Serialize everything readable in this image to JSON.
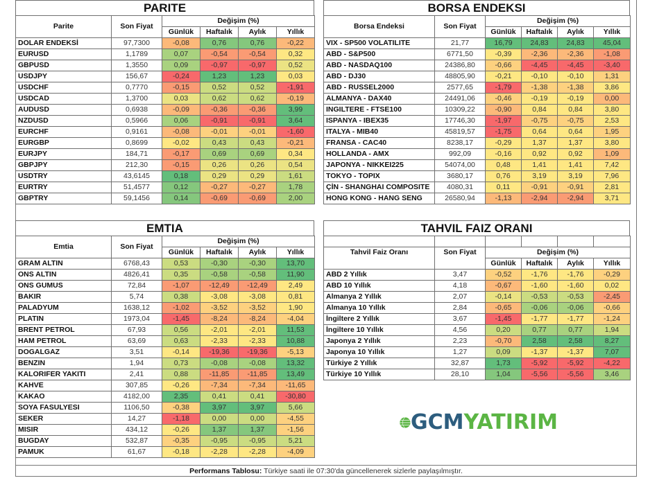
{
  "colors": {
    "A": "#63be7b",
    "B": "#85c77d",
    "C": "#a9d27f",
    "D": "#cbdc81",
    "E": "#ebe383",
    "F": "#fee783",
    "G": "#fdd17f",
    "H": "#fcb97a",
    "I": "#fa9b74",
    "J": "#f8696b"
  },
  "headers": {
    "son_fiyat": "Son Fiyat",
    "degisim": "Değişim (%)",
    "gunluk": "Günlük",
    "haftalik": "Haftalık",
    "aylik": "Aylık",
    "yillik": "Yıllık"
  },
  "parite": {
    "title": "PARITE",
    "col": "Parite",
    "rows": [
      {
        "name": "DOLAR ENDEKSİ",
        "price": "97,7300",
        "c": [
          "-0,08",
          "0,76",
          "0,76",
          "-0,22"
        ],
        "k": [
          "H",
          "B",
          "B",
          "H"
        ]
      },
      {
        "name": "EURUSD",
        "price": "1,1789",
        "c": [
          "0,07",
          "-0,54",
          "-0,54",
          "0,32"
        ],
        "k": [
          "C",
          "I",
          "I",
          "F"
        ]
      },
      {
        "name": "GBPUSD",
        "price": "1,3550",
        "c": [
          "0,09",
          "-0,97",
          "-0,97",
          "0,52"
        ],
        "k": [
          "C",
          "J",
          "J",
          "E"
        ]
      },
      {
        "name": "USDJPY",
        "price": "156,67",
        "c": [
          "-0,24",
          "1,23",
          "1,23",
          "0,03"
        ],
        "k": [
          "J",
          "A",
          "A",
          "F"
        ]
      },
      {
        "name": "USDCHF",
        "price": "0,7770",
        "c": [
          "-0,15",
          "0,52",
          "0,52",
          "-1,91"
        ],
        "k": [
          "I",
          "D",
          "D",
          "J"
        ]
      },
      {
        "name": "USDCAD",
        "price": "1,3700",
        "c": [
          "0,03",
          "0,62",
          "0,62",
          "-0,19"
        ],
        "k": [
          "E",
          "D",
          "D",
          "H"
        ]
      },
      {
        "name": "AUDUSD",
        "price": "0,6938",
        "c": [
          "-0,09",
          "-0,36",
          "-0,36",
          "3,99"
        ],
        "k": [
          "H",
          "I",
          "I",
          "A"
        ]
      },
      {
        "name": "NZDUSD",
        "price": "0,5966",
        "c": [
          "0,06",
          "-0,91",
          "-0,91",
          "3,64"
        ],
        "k": [
          "C",
          "J",
          "J",
          "A"
        ]
      },
      {
        "name": "EURCHF",
        "price": "0,9161",
        "c": [
          "-0,08",
          "-0,01",
          "-0,01",
          "-1,60"
        ],
        "k": [
          "H",
          "G",
          "G",
          "J"
        ]
      },
      {
        "name": "EURGBP",
        "price": "0,8699",
        "c": [
          "-0,02",
          "0,43",
          "0,43",
          "-0,21"
        ],
        "k": [
          "F",
          "D",
          "D",
          "H"
        ]
      },
      {
        "name": "EURJPY",
        "price": "184,71",
        "c": [
          "-0,17",
          "0,69",
          "0,69",
          "0,34"
        ],
        "k": [
          "I",
          "C",
          "C",
          "F"
        ]
      },
      {
        "name": "GBPJPY",
        "price": "212,30",
        "c": [
          "-0,15",
          "0,26",
          "0,26",
          "0,54"
        ],
        "k": [
          "I",
          "E",
          "E",
          "E"
        ]
      },
      {
        "name": "USDTRY",
        "price": "43,6145",
        "c": [
          "0,18",
          "0,29",
          "0,29",
          "1,61"
        ],
        "k": [
          "A",
          "E",
          "E",
          "D"
        ]
      },
      {
        "name": "EURTRY",
        "price": "51,4577",
        "c": [
          "0,12",
          "-0,27",
          "-0,27",
          "1,78"
        ],
        "k": [
          "B",
          "H",
          "H",
          "C"
        ]
      },
      {
        "name": "GBPTRY",
        "price": "59,1456",
        "c": [
          "0,14",
          "-0,69",
          "-0,69",
          "2,00"
        ],
        "k": [
          "B",
          "I",
          "I",
          "C"
        ]
      }
    ]
  },
  "borsa": {
    "title": "BORSA ENDEKSI",
    "col": "Borsa Endeksi",
    "rows": [
      {
        "name": "VIX  - SP500 VOLATILITE",
        "price": "21,77",
        "c": [
          "16,79",
          "24,83",
          "24,83",
          "45,04"
        ],
        "k": [
          "A",
          "A",
          "A",
          "A"
        ]
      },
      {
        "name": "ABD - S&P500",
        "price": "6771,50",
        "c": [
          "-0,39",
          "-2,36",
          "-2,36",
          "-1,08"
        ],
        "k": [
          "F",
          "H",
          "H",
          "I"
        ]
      },
      {
        "name": "ABD - NASDAQ100",
        "price": "24386,80",
        "c": [
          "-0,66",
          "-4,45",
          "-4,45",
          "-3,40"
        ],
        "k": [
          "G",
          "J",
          "J",
          "J"
        ]
      },
      {
        "name": "ABD - DJ30",
        "price": "48805,90",
        "c": [
          "-0,21",
          "-0,10",
          "-0,10",
          "1,31"
        ],
        "k": [
          "F",
          "F",
          "F",
          "G"
        ]
      },
      {
        "name": "ABD - RUSSEL2000",
        "price": "2577,65",
        "c": [
          "-1,79",
          "-1,38",
          "-1,38",
          "3,86"
        ],
        "k": [
          "J",
          "G",
          "G",
          "F"
        ]
      },
      {
        "name": "ALMANYA - DAX40",
        "price": "24491,06",
        "c": [
          "-0,46",
          "-0,19",
          "-0,19",
          "0,00"
        ],
        "k": [
          "G",
          "F",
          "F",
          "H"
        ]
      },
      {
        "name": "INGILTERE - FTSE100",
        "price": "10309,22",
        "c": [
          "-0,90",
          "0,84",
          "0,84",
          "3,80"
        ],
        "k": [
          "H",
          "F",
          "F",
          "F"
        ]
      },
      {
        "name": "ISPANYA - IBEX35",
        "price": "17746,30",
        "c": [
          "-1,97",
          "-0,75",
          "-0,75",
          "2,53"
        ],
        "k": [
          "J",
          "G",
          "G",
          "F"
        ]
      },
      {
        "name": "ITALYA - MIB40",
        "price": "45819,57",
        "c": [
          "-1,75",
          "0,64",
          "0,64",
          "1,95"
        ],
        "k": [
          "J",
          "F",
          "F",
          "G"
        ]
      },
      {
        "name": "FRANSA - CAC40",
        "price": "8238,17",
        "c": [
          "-0,29",
          "1,37",
          "1,37",
          "3,80"
        ],
        "k": [
          "F",
          "F",
          "F",
          "F"
        ]
      },
      {
        "name": "HOLLANDA - AMX",
        "price": "992,09",
        "c": [
          "-0,16",
          "0,92",
          "0,92",
          "1,09"
        ],
        "k": [
          "F",
          "F",
          "F",
          "H"
        ]
      },
      {
        "name": "JAPONYA - NIKKEI225",
        "price": "54074,00",
        "c": [
          "0,48",
          "1,41",
          "1,41",
          "7,42"
        ],
        "k": [
          "F",
          "F",
          "F",
          "F"
        ]
      },
      {
        "name": "TOKYO - TOPIX",
        "price": "3680,17",
        "c": [
          "0,76",
          "3,19",
          "3,19",
          "7,96"
        ],
        "k": [
          "F",
          "F",
          "F",
          "F"
        ]
      },
      {
        "name": "ÇİN - SHANGHAI COMPOSITE",
        "price": "4080,31",
        "c": [
          "0,11",
          "-0,91",
          "-0,91",
          "2,81"
        ],
        "k": [
          "F",
          "G",
          "G",
          "F"
        ]
      },
      {
        "name": "HONG KONG - HANG SENG",
        "price": "26580,94",
        "c": [
          "-1,13",
          "-2,94",
          "-2,94",
          "3,71"
        ],
        "k": [
          "H",
          "I",
          "I",
          "F"
        ]
      }
    ]
  },
  "emtia": {
    "title": "EMTIA",
    "col": "Emtia",
    "rows": [
      {
        "name": "GRAM ALTIN",
        "price": "6768,43",
        "c": [
          "0,53",
          "-0,30",
          "-0,30",
          "13,70"
        ],
        "k": [
          "D",
          "C",
          "C",
          "A"
        ]
      },
      {
        "name": "ONS ALTIN",
        "price": "4826,41",
        "c": [
          "0,35",
          "-0,58",
          "-0,58",
          "11,90"
        ],
        "k": [
          "D",
          "C",
          "C",
          "A"
        ]
      },
      {
        "name": "ONS GUMUS",
        "price": "72,84",
        "c": [
          "-1,07",
          "-12,49",
          "-12,49",
          "2,49"
        ],
        "k": [
          "I",
          "I",
          "I",
          "F"
        ]
      },
      {
        "name": "BAKIR",
        "price": "5,74",
        "c": [
          "0,38",
          "-3,08",
          "-3,08",
          "0,81"
        ],
        "k": [
          "D",
          "F",
          "F",
          "F"
        ]
      },
      {
        "name": "PALADYUM",
        "price": "1638,12",
        "c": [
          "-1,02",
          "-3,52",
          "-3,52",
          "1,90"
        ],
        "k": [
          "I",
          "G",
          "G",
          "F"
        ]
      },
      {
        "name": "PLATIN",
        "price": "1973,04",
        "c": [
          "-1,45",
          "-8,24",
          "-8,24",
          "-4,04"
        ],
        "k": [
          "J",
          "H",
          "H",
          "G"
        ]
      },
      {
        "name": "BRENT PETROL",
        "price": "67,93",
        "c": [
          "0,56",
          "-2,01",
          "-2,01",
          "11,53"
        ],
        "k": [
          "D",
          "F",
          "F",
          "A"
        ]
      },
      {
        "name": "HAM PETROL",
        "price": "63,69",
        "c": [
          "0,63",
          "-2,33",
          "-2,33",
          "10,88"
        ],
        "k": [
          "D",
          "F",
          "F",
          "A"
        ]
      },
      {
        "name": "DOGALGAZ",
        "price": "3,51",
        "c": [
          "-0,14",
          "-19,36",
          "-19,36",
          "-5,13"
        ],
        "k": [
          "F",
          "J",
          "J",
          "G"
        ]
      },
      {
        "name": "BENZIN",
        "price": "1,94",
        "c": [
          "0,73",
          "-0,08",
          "-0,08",
          "13,32"
        ],
        "k": [
          "D",
          "C",
          "C",
          "A"
        ]
      },
      {
        "name": "KALORIFER YAKITI",
        "price": "2,41",
        "c": [
          "0,88",
          "-11,85",
          "-11,85",
          "13,49"
        ],
        "k": [
          "D",
          "I",
          "I",
          "A"
        ]
      },
      {
        "name": "KAHVE",
        "price": "307,85",
        "c": [
          "-0,26",
          "-7,34",
          "-7,34",
          "-11,65"
        ],
        "k": [
          "F",
          "H",
          "H",
          "H"
        ]
      },
      {
        "name": "KAKAO",
        "price": "4182,00",
        "c": [
          "2,35",
          "0,41",
          "0,41",
          "-30,80"
        ],
        "k": [
          "A",
          "D",
          "D",
          "J"
        ]
      },
      {
        "name": "SOYA FASULYESI",
        "price": "1106,50",
        "c": [
          "-0,38",
          "3,97",
          "3,97",
          "5,66"
        ],
        "k": [
          "G",
          "A",
          "A",
          "D"
        ]
      },
      {
        "name": "SEKER",
        "price": "14,27",
        "c": [
          "-1,18",
          "0,00",
          "0,00",
          "-4,55"
        ],
        "k": [
          "J",
          "D",
          "D",
          "G"
        ]
      },
      {
        "name": "MISIR",
        "price": "434,12",
        "c": [
          "-0,26",
          "1,37",
          "1,37",
          "-1,56"
        ],
        "k": [
          "F",
          "B",
          "B",
          "G"
        ]
      },
      {
        "name": "BUGDAY",
        "price": "532,87",
        "c": [
          "-0,35",
          "-0,95",
          "-0,95",
          "5,21"
        ],
        "k": [
          "G",
          "D",
          "D",
          "D"
        ]
      },
      {
        "name": "PAMUK",
        "price": "61,67",
        "c": [
          "-0,18",
          "-2,28",
          "-2,28",
          "-4,09"
        ],
        "k": [
          "F",
          "F",
          "F",
          "G"
        ]
      }
    ]
  },
  "tahvil": {
    "title": "TAHVIL FAIZ ORANI",
    "col": "Tahvil Faiz Oranı",
    "rows": [
      {
        "name": "ABD 2 Yıllık",
        "price": "3,47",
        "c": [
          "-0,52",
          "-1,76",
          "-1,76",
          "-0,29"
        ],
        "k": [
          "G",
          "F",
          "F",
          "G"
        ]
      },
      {
        "name": "ABD 10 Yıllık",
        "price": "4,18",
        "c": [
          "-0,67",
          "-1,60",
          "-1,60",
          "0,02"
        ],
        "k": [
          "H",
          "F",
          "F",
          "F"
        ]
      },
      {
        "name": "Almanya 2 Yıllık",
        "price": "2,07",
        "c": [
          "-0,14",
          "-0,53",
          "-0,53",
          "-2,45"
        ],
        "k": [
          "E",
          "D",
          "D",
          "I"
        ]
      },
      {
        "name": "Almanya 10 Yıllık",
        "price": "2,84",
        "c": [
          "-0,65",
          "-0,06",
          "-0,06",
          "-0,66"
        ],
        "k": [
          "H",
          "C",
          "C",
          "G"
        ]
      },
      {
        "name": "İngiltere 2 Yıllık",
        "price": "3,67",
        "c": [
          "-1,45",
          "-1,77",
          "-1,77",
          "-1,24"
        ],
        "k": [
          "J",
          "F",
          "F",
          "G"
        ]
      },
      {
        "name": "İngiltere 10 Yıllık",
        "price": "4,56",
        "c": [
          "0,20",
          "0,77",
          "0,77",
          "1,94"
        ],
        "k": [
          "D",
          "C",
          "C",
          "D"
        ]
      },
      {
        "name": "Japonya 2 Yıllık",
        "price": "2,23",
        "c": [
          "-0,70",
          "2,58",
          "2,58",
          "8,27"
        ],
        "k": [
          "H",
          "A",
          "A",
          "A"
        ]
      },
      {
        "name": "Japonya 10 Yıllık",
        "price": "1,27",
        "c": [
          "0,09",
          "-1,37",
          "-1,37",
          "7,07"
        ],
        "k": [
          "D",
          "F",
          "F",
          "A"
        ]
      },
      {
        "name": "Türkiye 2 Yıllık",
        "price": "32,87",
        "c": [
          "1,73",
          "-5,92",
          "-5,92",
          "-4,22"
        ],
        "k": [
          "A",
          "J",
          "J",
          "J"
        ]
      },
      {
        "name": "Türkiye 10 Yıllık",
        "price": "28,10",
        "c": [
          "1,04",
          "-5,56",
          "-5,56",
          "3,46"
        ],
        "k": [
          "B",
          "J",
          "J",
          "C"
        ]
      }
    ]
  },
  "logo": {
    "part1": "GCM",
    "part2": "YATIRIM"
  },
  "footer": {
    "bold": "Performans Tablosu:",
    "text": " Türkiye saati ile 07:30'da güncellenerek sizlerle paylaşılmıştır."
  }
}
